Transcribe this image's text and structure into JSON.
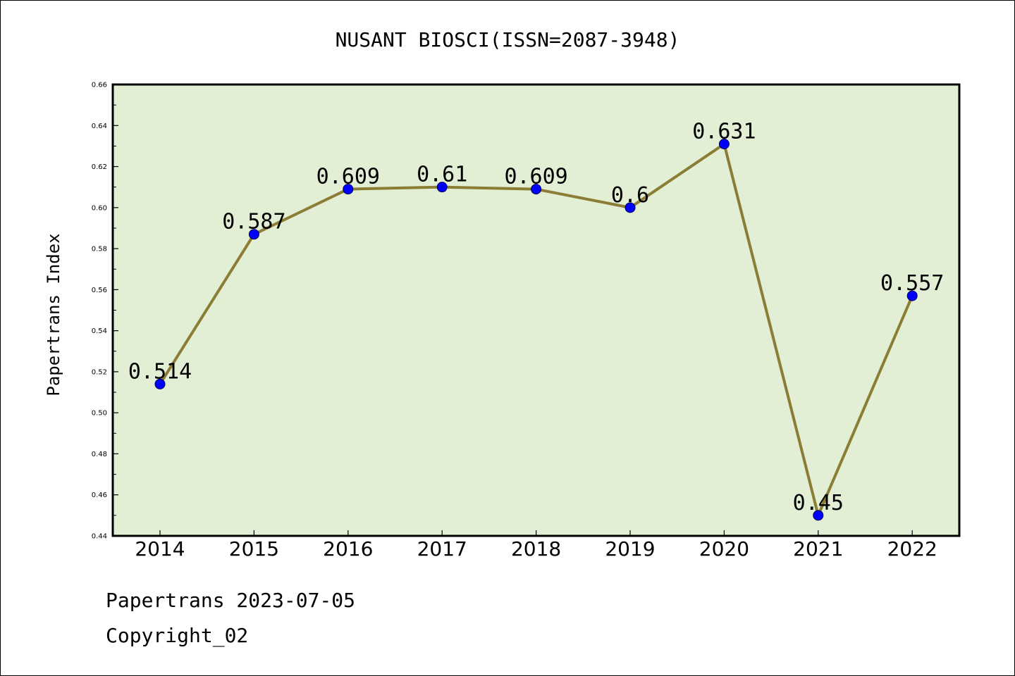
{
  "chart_data": {
    "type": "line",
    "title": "NUSANT BIOSCI(ISSN=2087-3948)",
    "xlabel": "",
    "ylabel": "Papertrans Index",
    "categories": [
      "2014",
      "2015",
      "2016",
      "2017",
      "2018",
      "2019",
      "2020",
      "2021",
      "2022"
    ],
    "series": [
      {
        "values": [
          0.514,
          0.587,
          0.609,
          0.61,
          0.609,
          0.6,
          0.631,
          0.45,
          0.557
        ],
        "labels": [
          "0.514",
          "0.587",
          "0.609",
          "0.61",
          "0.609",
          "0.6",
          "0.631",
          "0.45",
          "0.557"
        ]
      }
    ],
    "ylim": [
      0.44,
      0.66
    ],
    "yticks": [
      "0.44",
      "0.46",
      "0.48",
      "0.50",
      "0.52",
      "0.54",
      "0.56",
      "0.58",
      "0.60",
      "0.62",
      "0.64",
      "0.66"
    ],
    "grid": false,
    "colors": {
      "plot_background": "#e2efd4",
      "line": "#8b7d35",
      "marker": "#0000ff",
      "marker_edge": "#000055"
    }
  },
  "footer": {
    "line1": "Papertrans 2023-07-05",
    "line2": "Copyright_02"
  }
}
